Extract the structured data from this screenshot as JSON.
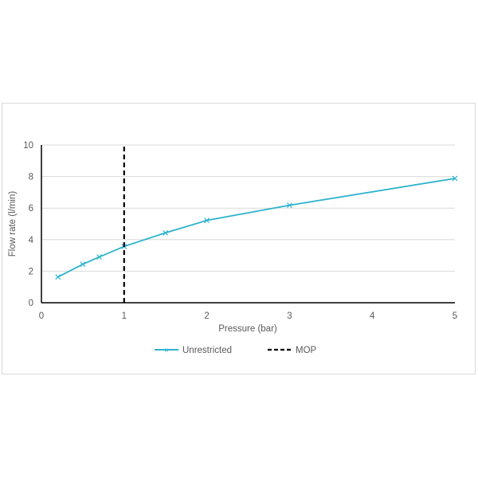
{
  "chart_data": {
    "type": "line",
    "xlabel": "Pressure (bar)",
    "ylabel": "Flow rate (l/min)",
    "xlim": [
      0,
      5
    ],
    "ylim": [
      0,
      10
    ],
    "xticks": [
      "0",
      "1",
      "2",
      "3",
      "4",
      "5"
    ],
    "yticks": [
      "0",
      "2",
      "4",
      "6",
      "8",
      "10"
    ],
    "grid": true,
    "legend_position": "bottom",
    "series": [
      {
        "name": "Unrestricted",
        "color": "#2eb3cc",
        "marker": "x",
        "x": [
          0.2,
          0.5,
          0.7,
          1,
          1.5,
          2,
          3,
          5
        ],
        "y": [
          1.63,
          2.44,
          2.9,
          3.57,
          4.43,
          5.22,
          6.18,
          7.88
        ]
      },
      {
        "name": "MOP",
        "color": "#000000",
        "style": "dashed",
        "x": [
          1,
          1
        ],
        "y": [
          0,
          10
        ]
      }
    ]
  }
}
